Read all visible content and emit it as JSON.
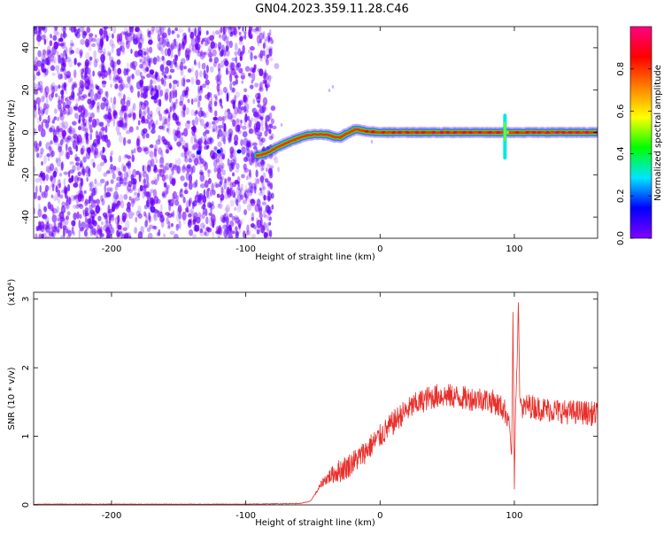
{
  "title": "GN04.2023.359.11.28.C46",
  "chart_data": [
    {
      "type": "heatmap",
      "title": "GN04.2023.359.11.28.C46",
      "xlabel": "Height of straight line (km)",
      "ylabel": "Frequency (Hz)",
      "xlim": [
        -258,
        162
      ],
      "ylim": [
        -50,
        50
      ],
      "xticks": [
        "-200",
        "-100",
        "0",
        "100"
      ],
      "yticks": [
        "-40",
        "-20",
        "0",
        "20",
        "40"
      ],
      "colorbar": {
        "label": "Normalized spectral amplitude",
        "range": [
          0,
          1
        ],
        "ticks": [
          "0.0",
          "0.2",
          "0.4",
          "0.6",
          "0.8"
        ],
        "colormap": [
          "#8000ff",
          "#0000ff",
          "#00e5ff",
          "#00ff00",
          "#ffff00",
          "#ff8000",
          "#ff0000",
          "#ff0080"
        ]
      },
      "noise_region": {
        "x": [
          -258,
          -80
        ],
        "frequency": [
          -50,
          50
        ],
        "normalized_amplitude": [
          0.0,
          0.15
        ]
      },
      "ridge": {
        "x": [
          -92,
          -85,
          -78,
          -70,
          -62,
          -55,
          -48,
          -40,
          -35,
          -30,
          -25,
          -18,
          -10,
          0,
          20,
          40,
          60,
          80,
          92,
          96,
          100,
          120,
          140,
          162
        ],
        "frequency": [
          -11,
          -10,
          -7.5,
          -5,
          -3,
          -1.5,
          -1,
          -1,
          -2,
          -2.5,
          -0.5,
          1.5,
          0.5,
          0,
          0,
          0,
          0,
          0,
          0,
          0,
          0,
          0,
          0,
          0
        ],
        "normalized_amplitude": [
          0.25,
          0.3,
          0.45,
          0.6,
          0.7,
          0.8,
          0.85,
          0.85,
          0.8,
          0.75,
          0.8,
          0.85,
          0.85,
          0.9,
          0.92,
          0.92,
          0.92,
          0.92,
          0.9,
          0.5,
          0.9,
          0.95,
          0.95,
          0.95
        ]
      },
      "spike": {
        "x": 93,
        "frequency": [
          -12,
          8
        ]
      }
    },
    {
      "type": "line",
      "xlabel": "Height of straight line (km)",
      "ylabel": "SNR (10 * v/v)",
      "y_scale_label": "(x10⁴)",
      "xlim": [
        -258,
        162
      ],
      "ylim": [
        0,
        3.1
      ],
      "xticks": [
        "-200",
        "-100",
        "0",
        "100"
      ],
      "yticks": [
        "0",
        "1",
        "2",
        "3"
      ],
      "series": [
        {
          "color": "#e8302b",
          "x": [
            -258,
            -200,
            -150,
            -100,
            -60,
            -52,
            -47,
            -42,
            -35,
            -25,
            -15,
            -5,
            5,
            15,
            25,
            35,
            45,
            55,
            65,
            75,
            85,
            92,
            96,
            98,
            99,
            100,
            101,
            102,
            103,
            104,
            106,
            110,
            120,
            130,
            140,
            150,
            162
          ],
          "y": [
            0.01,
            0.01,
            0.01,
            0.01,
            0.02,
            0.05,
            0.2,
            0.35,
            0.45,
            0.55,
            0.7,
            0.9,
            1.1,
            1.3,
            1.45,
            1.55,
            1.6,
            1.58,
            1.55,
            1.55,
            1.5,
            1.4,
            1.25,
            0.7,
            2.8,
            0.2,
            1.5,
            2.0,
            3.0,
            1.6,
            1.4,
            1.45,
            1.4,
            1.38,
            1.35,
            1.35,
            1.32
          ],
          "noise_amplitude": 0.18
        }
      ]
    }
  ]
}
